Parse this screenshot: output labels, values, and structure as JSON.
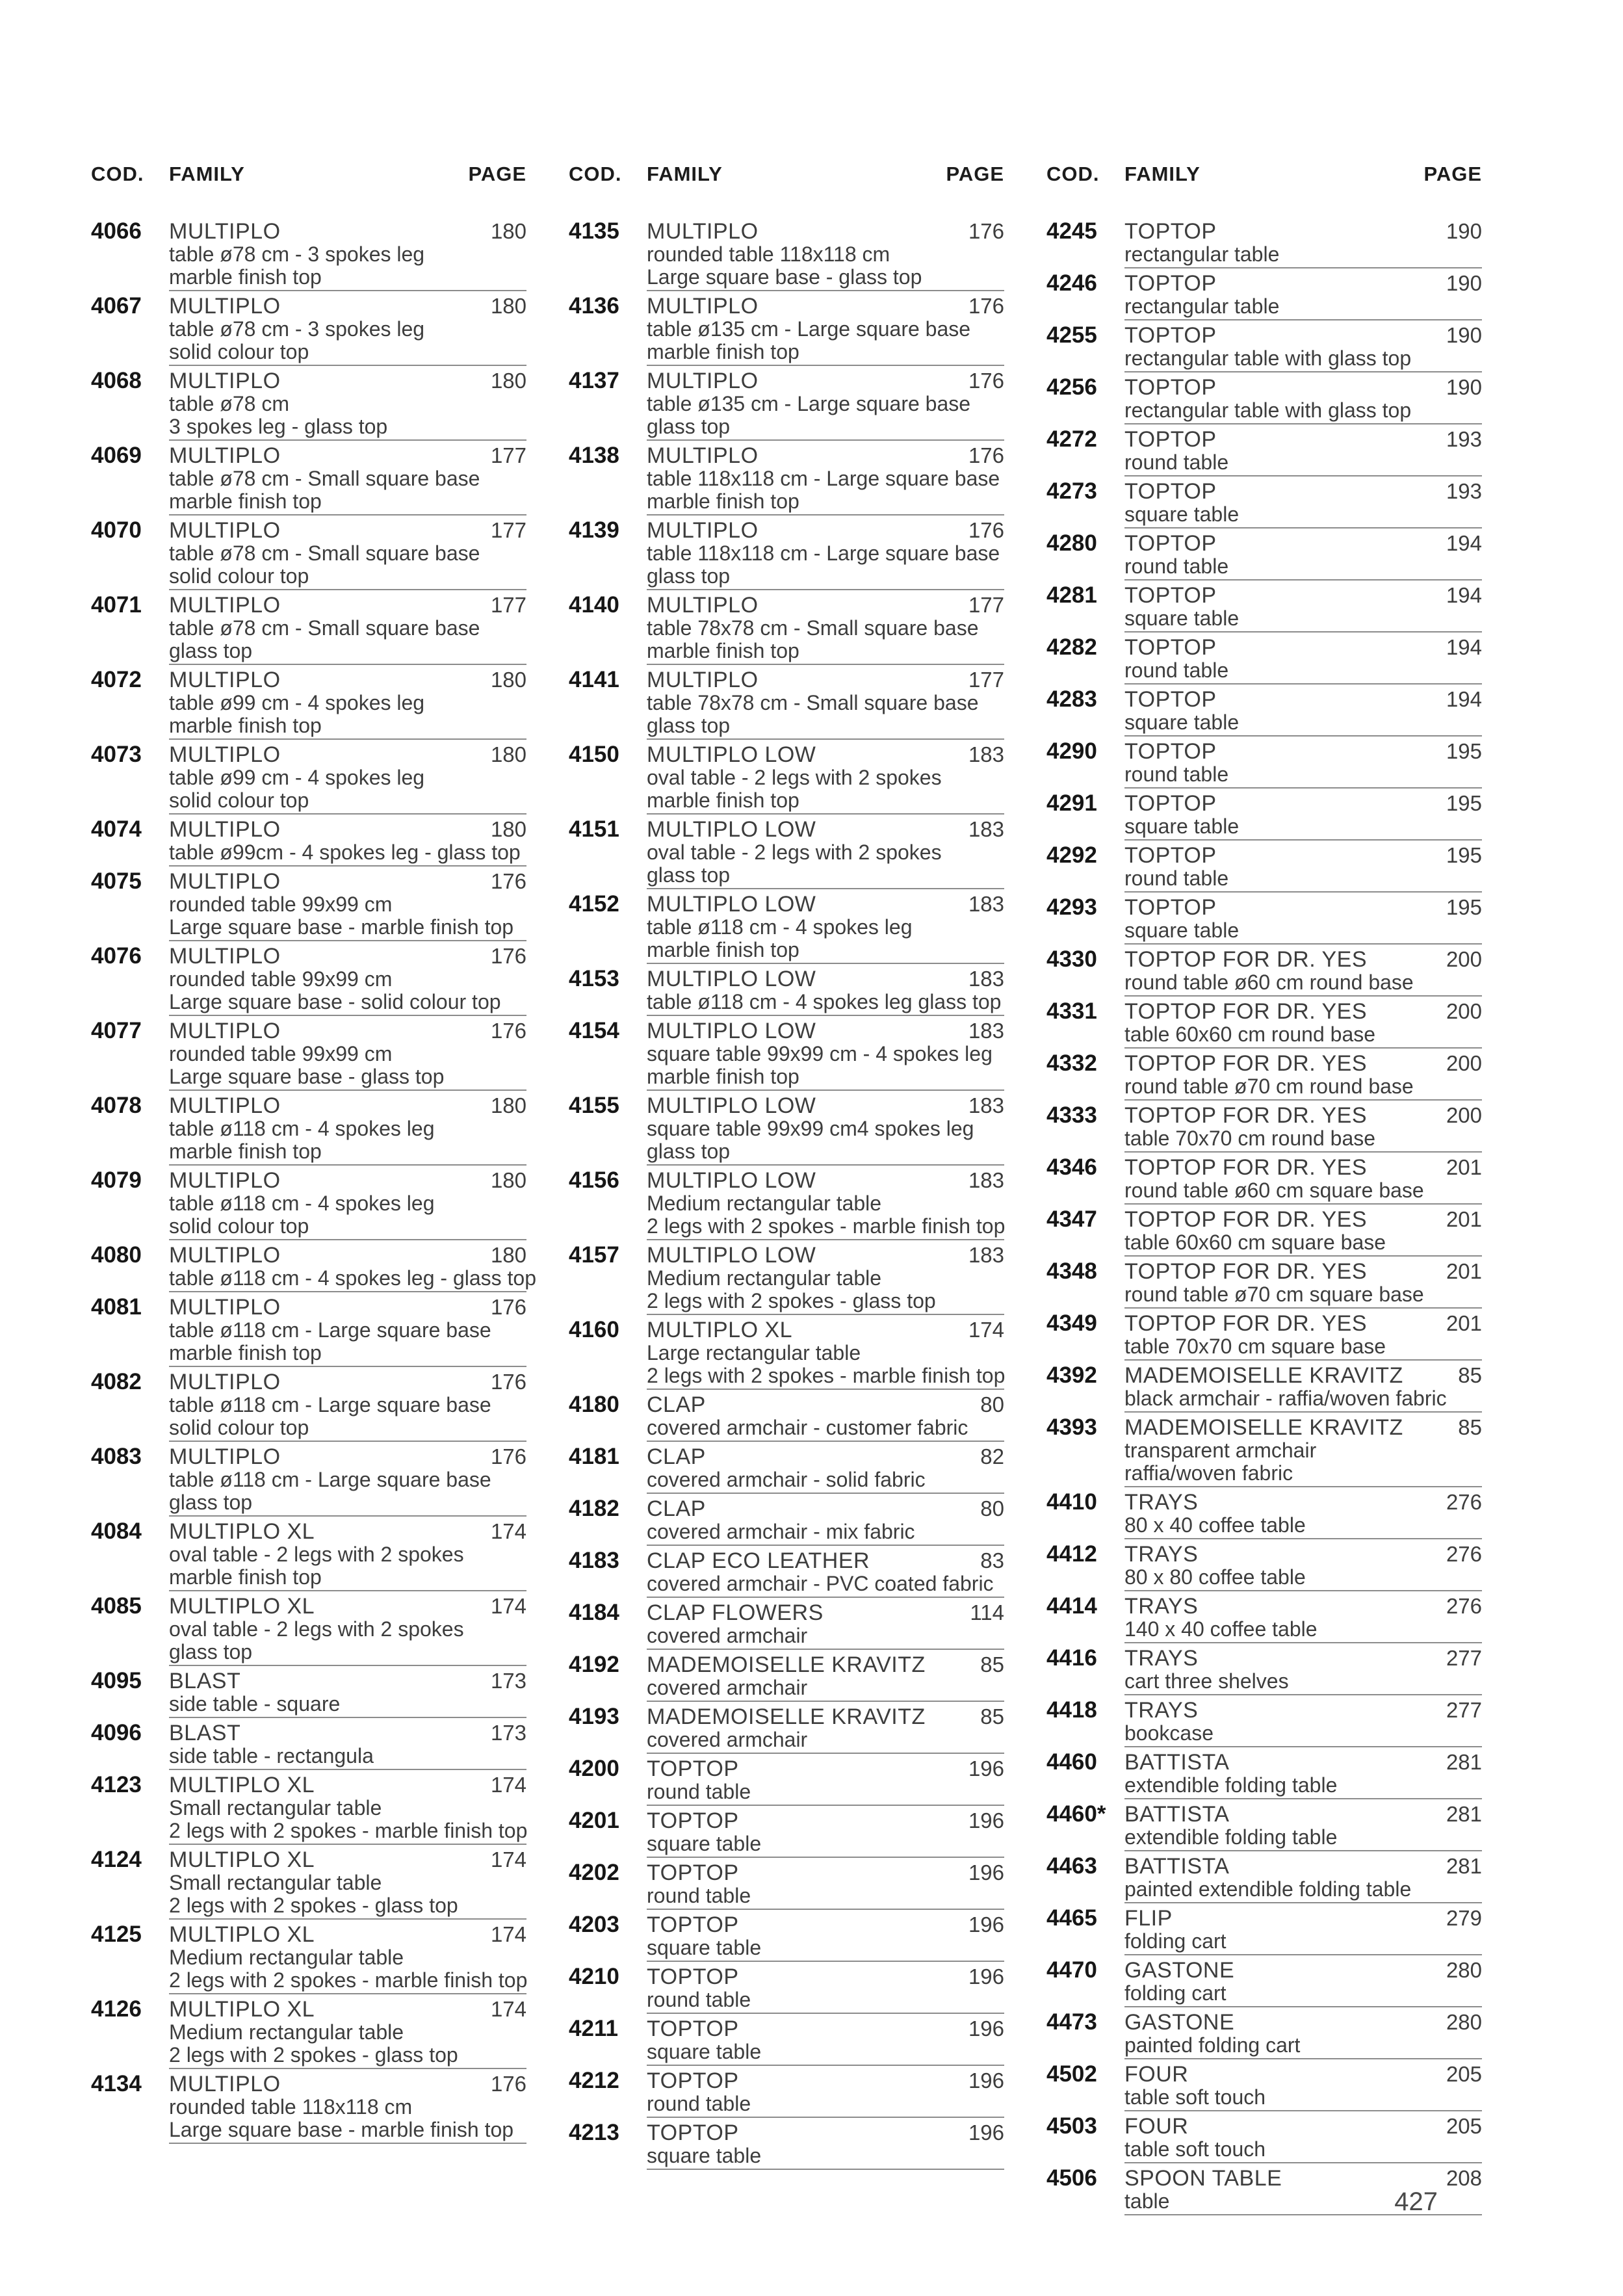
{
  "page": {
    "number": "427"
  },
  "header": {
    "cod": "COD.",
    "family": "FAMILY",
    "page": "PAGE"
  },
  "columns": [
    {
      "entries": [
        {
          "code": "4066",
          "family": "MULTIPLO",
          "page": "180",
          "desc": [
            "table ø78 cm - 3 spokes leg",
            "marble finish top"
          ]
        },
        {
          "code": "4067",
          "family": "MULTIPLO",
          "page": "180",
          "desc": [
            "table ø78 cm - 3 spokes leg",
            "solid colour top"
          ]
        },
        {
          "code": "4068",
          "family": "MULTIPLO",
          "page": "180",
          "desc": [
            "table ø78 cm",
            "3 spokes leg - glass top"
          ]
        },
        {
          "code": "4069",
          "family": "MULTIPLO",
          "page": "177",
          "desc": [
            "table ø78 cm - Small square base",
            "marble finish top"
          ]
        },
        {
          "code": "4070",
          "family": "MULTIPLO",
          "page": "177",
          "desc": [
            "table ø78 cm - Small square base",
            "solid colour top"
          ]
        },
        {
          "code": "4071",
          "family": "MULTIPLO",
          "page": "177",
          "desc": [
            "table ø78 cm - Small square base",
            "glass top"
          ]
        },
        {
          "code": "4072",
          "family": "MULTIPLO",
          "page": "180",
          "desc": [
            "table ø99 cm - 4 spokes leg",
            "marble finish top"
          ]
        },
        {
          "code": "4073",
          "family": "MULTIPLO",
          "page": "180",
          "desc": [
            "table ø99 cm - 4 spokes leg",
            "solid colour top"
          ]
        },
        {
          "code": "4074",
          "family": "MULTIPLO",
          "page": "180",
          "desc": [
            "table ø99cm - 4 spokes leg - glass top"
          ]
        },
        {
          "code": "4075",
          "family": "MULTIPLO",
          "page": "176",
          "desc": [
            "rounded table 99x99 cm",
            "Large square base - marble finish top"
          ]
        },
        {
          "code": "4076",
          "family": "MULTIPLO",
          "page": "176",
          "desc": [
            "rounded table 99x99 cm",
            "Large square base - solid colour top"
          ]
        },
        {
          "code": "4077",
          "family": "MULTIPLO",
          "page": "176",
          "desc": [
            "rounded table 99x99 cm",
            "Large square base - glass top"
          ]
        },
        {
          "code": "4078",
          "family": "MULTIPLO",
          "page": "180",
          "desc": [
            "table ø118 cm - 4 spokes leg",
            "marble finish top"
          ]
        },
        {
          "code": "4079",
          "family": "MULTIPLO",
          "page": "180",
          "desc": [
            "table ø118 cm - 4 spokes leg",
            "solid colour top"
          ]
        },
        {
          "code": "4080",
          "family": "MULTIPLO",
          "page": "180",
          "desc": [
            "table ø118 cm - 4 spokes leg - glass top"
          ]
        },
        {
          "code": "4081",
          "family": "MULTIPLO",
          "page": "176",
          "desc": [
            "table ø118 cm - Large square base",
            "marble finish top"
          ]
        },
        {
          "code": "4082",
          "family": "MULTIPLO",
          "page": "176",
          "desc": [
            "table ø118 cm - Large square base",
            "solid colour top"
          ]
        },
        {
          "code": "4083",
          "family": "MULTIPLO",
          "page": "176",
          "desc": [
            "table ø118 cm - Large square base",
            "glass top"
          ]
        },
        {
          "code": "4084",
          "family": "MULTIPLO XL",
          "page": "174",
          "desc": [
            "oval table - 2 legs with 2 spokes",
            "marble finish top"
          ]
        },
        {
          "code": "4085",
          "family": "MULTIPLO XL",
          "page": "174",
          "desc": [
            "oval table - 2 legs with 2 spokes",
            "glass top"
          ]
        },
        {
          "code": "4095",
          "family": "BLAST",
          "page": "173",
          "desc": [
            "side table - square"
          ]
        },
        {
          "code": "4096",
          "family": "BLAST",
          "page": "173",
          "desc": [
            "side table - rectangula"
          ]
        },
        {
          "code": "4123",
          "family": "MULTIPLO XL",
          "page": "174",
          "desc": [
            "Small rectangular table",
            "2 legs with 2 spokes - marble finish top"
          ]
        },
        {
          "code": "4124",
          "family": "MULTIPLO XL",
          "page": "174",
          "desc": [
            "Small rectangular table",
            "2 legs with 2 spokes - glass top"
          ]
        },
        {
          "code": "4125",
          "family": "MULTIPLO XL",
          "page": "174",
          "desc": [
            "Medium rectangular table",
            "2 legs with 2 spokes - marble finish top"
          ]
        },
        {
          "code": "4126",
          "family": "MULTIPLO XL",
          "page": "174",
          "desc": [
            "Medium rectangular table",
            "2 legs with 2 spokes - glass top"
          ]
        },
        {
          "code": "4134",
          "family": "MULTIPLO",
          "page": "176",
          "desc": [
            "rounded table 118x118 cm",
            "Large square base - marble finish top"
          ]
        }
      ]
    },
    {
      "entries": [
        {
          "code": "4135",
          "family": "MULTIPLO",
          "page": "176",
          "desc": [
            "rounded table 118x118 cm",
            "Large square base - glass top"
          ]
        },
        {
          "code": "4136",
          "family": "MULTIPLO",
          "page": "176",
          "desc": [
            "table ø135 cm - Large square base",
            "marble finish top"
          ]
        },
        {
          "code": "4137",
          "family": "MULTIPLO",
          "page": "176",
          "desc": [
            "table ø135 cm - Large square base",
            "glass top"
          ]
        },
        {
          "code": "4138",
          "family": "MULTIPLO",
          "page": "176",
          "desc": [
            "table 118x118 cm - Large square base",
            "marble finish top"
          ]
        },
        {
          "code": "4139",
          "family": "MULTIPLO",
          "page": "176",
          "desc": [
            "table 118x118 cm - Large square base",
            "glass top"
          ]
        },
        {
          "code": "4140",
          "family": "MULTIPLO",
          "page": "177",
          "desc": [
            "table 78x78 cm - Small square base",
            "marble finish top"
          ]
        },
        {
          "code": "4141",
          "family": "MULTIPLO",
          "page": "177",
          "desc": [
            "table 78x78 cm - Small square base",
            "glass top"
          ]
        },
        {
          "code": "4150",
          "family": "MULTIPLO LOW",
          "page": "183",
          "desc": [
            "oval table - 2 legs with 2 spokes",
            "marble finish top"
          ]
        },
        {
          "code": "4151",
          "family": "MULTIPLO LOW",
          "page": "183",
          "desc": [
            "oval table - 2 legs with 2 spokes",
            "glass top"
          ]
        },
        {
          "code": "4152",
          "family": "MULTIPLO LOW",
          "page": "183",
          "desc": [
            "table ø118 cm - 4 spokes leg",
            "marble finish top"
          ]
        },
        {
          "code": "4153",
          "family": "MULTIPLO LOW",
          "page": "183",
          "desc": [
            "table ø118 cm - 4 spokes leg glass top"
          ]
        },
        {
          "code": "4154",
          "family": "MULTIPLO LOW",
          "page": "183",
          "desc": [
            "square table 99x99 cm - 4 spokes leg",
            "marble finish top"
          ]
        },
        {
          "code": "4155",
          "family": "MULTIPLO LOW",
          "page": "183",
          "desc": [
            "square table 99x99 cm4 spokes leg",
            "glass top"
          ]
        },
        {
          "code": "4156",
          "family": "MULTIPLO LOW",
          "page": "183",
          "desc": [
            "Medium rectangular table",
            "2 legs with 2 spokes - marble finish top"
          ]
        },
        {
          "code": "4157",
          "family": "MULTIPLO LOW",
          "page": "183",
          "desc": [
            "Medium rectangular table",
            "2 legs with 2 spokes - glass top"
          ]
        },
        {
          "code": "4160",
          "family": "MULTIPLO XL",
          "page": "174",
          "desc": [
            "Large rectangular table",
            "2 legs with 2 spokes - marble finish top"
          ]
        },
        {
          "code": "4180",
          "family": "CLAP",
          "page": "80",
          "desc": [
            "covered armchair - customer fabric"
          ]
        },
        {
          "code": "4181",
          "family": "CLAP",
          "page": "82",
          "desc": [
            "covered armchair - solid fabric"
          ]
        },
        {
          "code": "4182",
          "family": "CLAP",
          "page": "80",
          "desc": [
            "covered armchair - mix fabric"
          ]
        },
        {
          "code": "4183",
          "family": "CLAP ECO LEATHER",
          "page": "83",
          "desc": [
            "covered armchair - PVC coated fabric"
          ]
        },
        {
          "code": "4184",
          "family": "CLAP FLOWERS",
          "page": "114",
          "desc": [
            "covered armchair"
          ]
        },
        {
          "code": "4192",
          "family": "MADEMOISELLE KRAVITZ",
          "page": "85",
          "desc": [
            "covered armchair"
          ]
        },
        {
          "code": "4193",
          "family": "MADEMOISELLE KRAVITZ",
          "page": "85",
          "desc": [
            "covered armchair"
          ]
        },
        {
          "code": "4200",
          "family": "TOPTOP",
          "page": "196",
          "desc": [
            "round table"
          ]
        },
        {
          "code": "4201",
          "family": "TOPTOP",
          "page": "196",
          "desc": [
            "square table"
          ]
        },
        {
          "code": "4202",
          "family": "TOPTOP",
          "page": "196",
          "desc": [
            "round table"
          ]
        },
        {
          "code": "4203",
          "family": "TOPTOP",
          "page": "196",
          "desc": [
            "square table"
          ]
        },
        {
          "code": "4210",
          "family": "TOPTOP",
          "page": "196",
          "desc": [
            "round table"
          ]
        },
        {
          "code": "4211",
          "family": "TOPTOP",
          "page": "196",
          "desc": [
            "square table"
          ]
        },
        {
          "code": "4212",
          "family": "TOPTOP",
          "page": "196",
          "desc": [
            "round table"
          ]
        },
        {
          "code": "4213",
          "family": "TOPTOP",
          "page": "196",
          "desc": [
            "square table"
          ]
        }
      ]
    },
    {
      "entries": [
        {
          "code": "4245",
          "family": "TOPTOP",
          "page": "190",
          "desc": [
            "rectangular table"
          ]
        },
        {
          "code": "4246",
          "family": "TOPTOP",
          "page": "190",
          "desc": [
            "rectangular table"
          ]
        },
        {
          "code": "4255",
          "family": "TOPTOP",
          "page": "190",
          "desc": [
            "rectangular table with glass top"
          ]
        },
        {
          "code": "4256",
          "family": "TOPTOP",
          "page": "190",
          "desc": [
            "rectangular table with glass top"
          ]
        },
        {
          "code": "4272",
          "family": "TOPTOP",
          "page": "193",
          "desc": [
            "round table"
          ]
        },
        {
          "code": "4273",
          "family": "TOPTOP",
          "page": "193",
          "desc": [
            "square table"
          ]
        },
        {
          "code": "4280",
          "family": "TOPTOP",
          "page": "194",
          "desc": [
            "round table"
          ]
        },
        {
          "code": "4281",
          "family": "TOPTOP",
          "page": "194",
          "desc": [
            "square table"
          ]
        },
        {
          "code": "4282",
          "family": "TOPTOP",
          "page": "194",
          "desc": [
            "round table"
          ]
        },
        {
          "code": "4283",
          "family": "TOPTOP",
          "page": "194",
          "desc": [
            "square table"
          ]
        },
        {
          "code": "4290",
          "family": "TOPTOP",
          "page": "195",
          "desc": [
            "round table"
          ]
        },
        {
          "code": "4291",
          "family": "TOPTOP",
          "page": "195",
          "desc": [
            "square table"
          ]
        },
        {
          "code": "4292",
          "family": "TOPTOP",
          "page": "195",
          "desc": [
            "round table"
          ]
        },
        {
          "code": "4293",
          "family": "TOPTOP",
          "page": "195",
          "desc": [
            "square table"
          ]
        },
        {
          "code": "4330",
          "family": "TOPTOP FOR DR. YES",
          "page": "200",
          "desc": [
            "round table ø60 cm round base"
          ]
        },
        {
          "code": "4331",
          "family": "TOPTOP FOR DR. YES",
          "page": "200",
          "desc": [
            "table 60x60 cm round base"
          ]
        },
        {
          "code": "4332",
          "family": "TOPTOP FOR DR. YES",
          "page": "200",
          "desc": [
            "round table ø70 cm round base"
          ]
        },
        {
          "code": "4333",
          "family": "TOPTOP FOR DR. YES",
          "page": "200",
          "desc": [
            "table 70x70 cm round base"
          ]
        },
        {
          "code": "4346",
          "family": "TOPTOP FOR DR. YES",
          "page": "201",
          "desc": [
            "round table ø60 cm square base"
          ]
        },
        {
          "code": "4347",
          "family": "TOPTOP FOR DR. YES",
          "page": "201",
          "desc": [
            "table 60x60 cm square base"
          ]
        },
        {
          "code": "4348",
          "family": "TOPTOP FOR DR. YES",
          "page": "201",
          "desc": [
            "round table ø70 cm square base"
          ]
        },
        {
          "code": "4349",
          "family": "TOPTOP FOR DR. YES",
          "page": "201",
          "desc": [
            "table 70x70 cm square base"
          ]
        },
        {
          "code": "4392",
          "family": "MADEMOISELLE KRAVITZ",
          "page": "85",
          "desc": [
            "black armchair - raffia/woven fabric"
          ]
        },
        {
          "code": "4393",
          "family": "MADEMOISELLE KRAVITZ",
          "page": "85",
          "desc": [
            "transparent armchair",
            "raffia/woven fabric"
          ]
        },
        {
          "code": "4410",
          "family": "TRAYS",
          "page": "276",
          "desc": [
            "80 x 40 coffee table"
          ]
        },
        {
          "code": "4412",
          "family": "TRAYS",
          "page": "276",
          "desc": [
            "80 x 80 coffee table"
          ]
        },
        {
          "code": "4414",
          "family": "TRAYS",
          "page": "276",
          "desc": [
            "140 x 40 coffee table"
          ]
        },
        {
          "code": "4416",
          "family": "TRAYS",
          "page": "277",
          "desc": [
            "cart three shelves"
          ]
        },
        {
          "code": "4418",
          "family": "TRAYS",
          "page": "277",
          "desc": [
            "bookcase"
          ]
        },
        {
          "code": "4460",
          "family": "BATTISTA",
          "page": "281",
          "desc": [
            "extendible folding table"
          ]
        },
        {
          "code": "4460*",
          "family": "BATTISTA",
          "page": "281",
          "desc": [
            "extendible folding table"
          ]
        },
        {
          "code": "4463",
          "family": "BATTISTA",
          "page": "281",
          "desc": [
            "painted extendible folding table"
          ]
        },
        {
          "code": "4465",
          "family": "FLIP",
          "page": "279",
          "desc": [
            "folding cart"
          ]
        },
        {
          "code": "4470",
          "family": "GASTONE",
          "page": "280",
          "desc": [
            "folding cart"
          ]
        },
        {
          "code": "4473",
          "family": "GASTONE",
          "page": "280",
          "desc": [
            "painted folding cart"
          ]
        },
        {
          "code": "4502",
          "family": "FOUR",
          "page": "205",
          "desc": [
            "table soft touch"
          ]
        },
        {
          "code": "4503",
          "family": "FOUR",
          "page": "205",
          "desc": [
            "table soft touch"
          ]
        },
        {
          "code": "4506",
          "family": "SPOON TABLE",
          "page": "208",
          "desc": [
            "table"
          ]
        }
      ]
    }
  ]
}
